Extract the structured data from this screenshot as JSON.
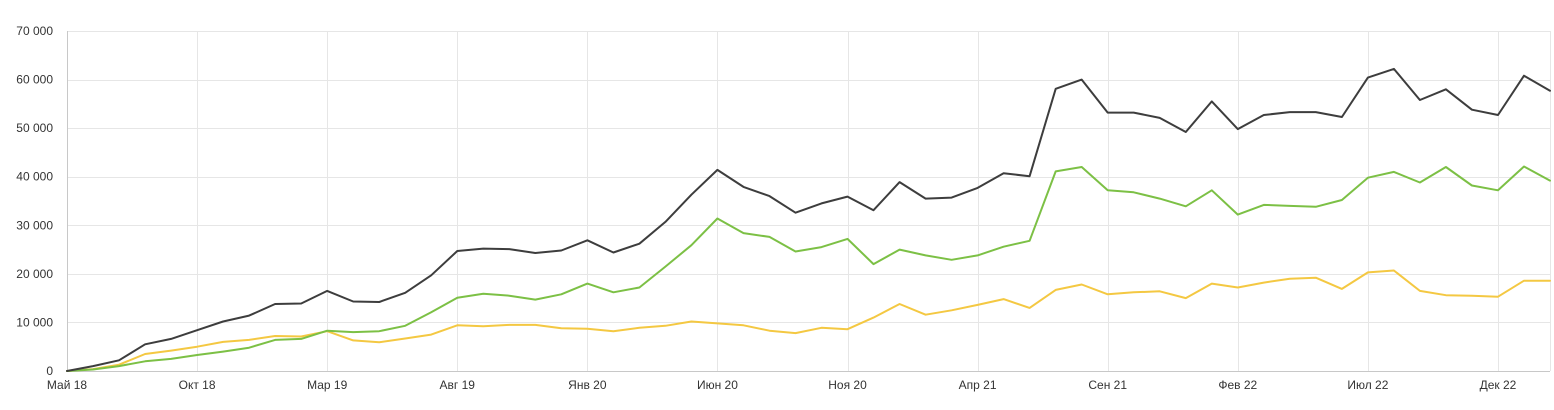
{
  "chart_data": {
    "type": "line",
    "title": "",
    "xlabel": "",
    "ylabel": "",
    "ylim": [
      0,
      70000
    ],
    "yticks": [
      0,
      10000,
      20000,
      30000,
      40000,
      50000,
      60000,
      70000
    ],
    "ytick_labels": [
      "0",
      "10 000",
      "20 000",
      "30 000",
      "40 000",
      "50 000",
      "60 000",
      "70 000"
    ],
    "grid": true,
    "legend": "none",
    "x_labels": [
      {
        "index": 0,
        "label": "Май 18"
      },
      {
        "index": 5,
        "label": "Окт 18"
      },
      {
        "index": 10,
        "label": "Мар 19"
      },
      {
        "index": 15,
        "label": "Авг 19"
      },
      {
        "index": 20,
        "label": "Янв 20"
      },
      {
        "index": 25,
        "label": "Июн 20"
      },
      {
        "index": 30,
        "label": "Ноя 20"
      },
      {
        "index": 35,
        "label": "Апр 21"
      },
      {
        "index": 40,
        "label": "Сен 21"
      },
      {
        "index": 45,
        "label": "Фев 22"
      },
      {
        "index": 50,
        "label": "Июл 22"
      },
      {
        "index": 55,
        "label": "Дек 22"
      }
    ],
    "x_count": 58,
    "series": [
      {
        "color": "#3d3d3d",
        "values": [
          0,
          1000,
          2200,
          5500,
          6600,
          8400,
          10200,
          11400,
          13800,
          13900,
          16500,
          14300,
          14200,
          16100,
          19700,
          24700,
          25200,
          25100,
          24300,
          24800,
          26900,
          24400,
          26200,
          30700,
          36300,
          41400,
          37900,
          36000,
          32600,
          34500,
          35900,
          33100,
          38900,
          35500,
          35700,
          37700,
          40700,
          40100,
          58100,
          60000,
          53200,
          53200,
          52100,
          49200,
          55500,
          49800,
          52700,
          53300,
          53300,
          52300,
          60400,
          62200,
          55800,
          58000,
          53800,
          52700,
          60800,
          57700
        ]
      },
      {
        "color": "#7cc045",
        "values": [
          0,
          300,
          1000,
          2000,
          2500,
          3300,
          4000,
          4800,
          6400,
          6600,
          8300,
          8000,
          8200,
          9300,
          12100,
          15100,
          15900,
          15500,
          14700,
          15800,
          18000,
          16200,
          17200,
          21500,
          25900,
          31400,
          28400,
          27600,
          24600,
          25500,
          27200,
          22000,
          25000,
          23800,
          22900,
          23800,
          25600,
          26800,
          41100,
          42000,
          37200,
          36800,
          35500,
          33900,
          37200,
          32200,
          34200,
          34000,
          33800,
          35200,
          39800,
          41000,
          38800,
          42000,
          38200,
          37200,
          42100,
          39200
        ]
      },
      {
        "color": "#f4c842",
        "values": [
          0,
          400,
          1300,
          3500,
          4200,
          5000,
          6000,
          6400,
          7200,
          7100,
          8200,
          6300,
          5900,
          6700,
          7500,
          9400,
          9200,
          9500,
          9500,
          8800,
          8700,
          8200,
          8900,
          9300,
          10200,
          9800,
          9400,
          8300,
          7800,
          8900,
          8600,
          11000,
          13800,
          11600,
          12500,
          13600,
          14800,
          13000,
          16700,
          17800,
          15800,
          16200,
          16400,
          15000,
          18000,
          17200,
          18200,
          19000,
          19200,
          16900,
          20300,
          20700,
          16500,
          15600,
          15500,
          15300,
          18600,
          18600
        ]
      }
    ]
  }
}
